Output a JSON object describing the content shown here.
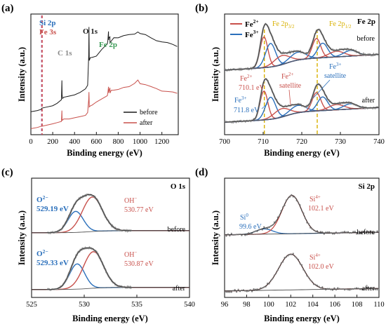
{
  "colors": {
    "black": "#1a1a1a",
    "red": "#c8504b",
    "blue": "#2a6fbb",
    "green": "#3a9a55",
    "gold": "#d8b000",
    "gray": "#8a8a8a",
    "fill_red": "#e8a4a0",
    "fill_blue": "#9cc0e6",
    "purple_dash": "#9a5fb0",
    "red_dash": "#d05050"
  },
  "chart_data": [
    {
      "panel": "(a)",
      "type": "line",
      "xlabel": "Binding energy (eV)",
      "ylabel": "Intensity (a.u.)",
      "xlim": [
        0,
        1350
      ],
      "xticks": [
        0,
        200,
        400,
        600,
        800,
        1000,
        1200
      ],
      "series": [
        {
          "name": "before",
          "color": "black",
          "x": [
            0,
            60,
            95,
            100,
            150,
            200,
            240,
            280,
            284,
            286,
            290,
            300,
            350,
            400,
            450,
            500,
            520,
            530,
            532,
            535,
            545,
            560,
            600,
            650,
            700,
            705,
            711,
            712,
            715,
            724,
            725,
            735,
            760,
            800,
            850,
            900,
            950,
            980,
            1000,
            1050,
            1100,
            1150,
            1200,
            1250,
            1300,
            1340
          ],
          "y": [
            0.19,
            0.2,
            0.21,
            0.22,
            0.23,
            0.24,
            0.26,
            0.29,
            0.45,
            0.33,
            0.3,
            0.31,
            0.32,
            0.33,
            0.35,
            0.38,
            0.41,
            0.66,
            0.9,
            0.62,
            0.64,
            0.64,
            0.66,
            0.7,
            0.75,
            0.78,
            0.86,
            0.78,
            0.8,
            0.82,
            0.76,
            0.78,
            0.8,
            0.81,
            0.82,
            0.83,
            0.84,
            0.86,
            0.83,
            0.82,
            0.81,
            0.78,
            0.76,
            0.77,
            0.75,
            0.73
          ]
        },
        {
          "name": "after",
          "color": "red",
          "x": [
            0,
            60,
            95,
            100,
            150,
            200,
            240,
            280,
            284,
            286,
            290,
            300,
            350,
            400,
            450,
            500,
            520,
            530,
            532,
            535,
            545,
            560,
            600,
            650,
            700,
            705,
            711,
            712,
            715,
            724,
            725,
            735,
            760,
            800,
            850,
            900,
            950,
            980,
            1000,
            1050,
            1100,
            1150,
            1200,
            1250,
            1300,
            1340
          ],
          "y": [
            0.05,
            0.06,
            0.07,
            0.07,
            0.08,
            0.09,
            0.1,
            0.11,
            0.2,
            0.12,
            0.12,
            0.13,
            0.13,
            0.14,
            0.15,
            0.16,
            0.18,
            0.3,
            0.36,
            0.22,
            0.24,
            0.25,
            0.27,
            0.3,
            0.33,
            0.34,
            0.4,
            0.35,
            0.37,
            0.38,
            0.35,
            0.36,
            0.37,
            0.38,
            0.39,
            0.4,
            0.42,
            0.45,
            0.43,
            0.42,
            0.4,
            0.39,
            0.37,
            0.36,
            0.35,
            0.34
          ]
        }
      ],
      "annotations": [
        {
          "text": "Si 2p",
          "color": "blue"
        },
        {
          "text": "Fe 3s",
          "color": "red"
        },
        {
          "text": "C 1s",
          "color": "gray"
        },
        {
          "text": "O 1s",
          "color": "black"
        },
        {
          "text": "Fe 2p",
          "color": "green"
        }
      ],
      "reference_lines_x": [
        99,
        103
      ],
      "legend": {
        "placement": "bottom-right",
        "entries": [
          "before",
          "after"
        ]
      }
    },
    {
      "panel": "(b)",
      "type": "line",
      "title": "Fe 2p",
      "xlabel": "Binding energy (eV)",
      "ylabel": "Intensity (a.u.)",
      "xlim": [
        700,
        740
      ],
      "xticks": [
        700,
        710,
        720,
        730,
        740
      ],
      "reference_lines_x": [
        710.3,
        724.0
      ],
      "legend": {
        "placement": "top-left",
        "entries": [
          "Fe2+",
          "Fe3+"
        ]
      },
      "labels": {
        "fe2p32": "Fe 2p3/2",
        "fe2p12": "Fe 2p1/2",
        "before": "before",
        "after": "after"
      },
      "annotations": [
        "Fe2+ 710.1 eV",
        "Fe3+ 711.8 eV",
        "Fe2+ satellite",
        "Fe3+ satellite"
      ]
    },
    {
      "panel": "(c)",
      "type": "line",
      "title": "O 1s",
      "xlabel": "Binding energy (eV)",
      "ylabel": "Intensity (a.u.)",
      "xlim": [
        525,
        540
      ],
      "xticks": [
        525,
        530,
        535,
        540
      ],
      "components": {
        "before": [
          {
            "name": "O2−",
            "center": 529.19
          },
          {
            "name": "OH−",
            "center": 530.77
          }
        ],
        "after": [
          {
            "name": "O2−",
            "center": 529.33
          },
          {
            "name": "OH−",
            "center": 530.87
          }
        ]
      },
      "labels": {
        "before": "before",
        "after": "after"
      }
    },
    {
      "panel": "(d)",
      "type": "line",
      "title": "Si 2p",
      "xlabel": "Binding energy (eV)",
      "ylabel": "Intensity (a.u.)",
      "xlim": [
        96,
        110
      ],
      "xticks": [
        96,
        98,
        100,
        102,
        104,
        106,
        108,
        110
      ],
      "components": {
        "before": [
          {
            "name": "Si0",
            "center": 99.6
          },
          {
            "name": "Si4+",
            "center": 102.1
          }
        ],
        "after": [
          {
            "name": "Si4+",
            "center": 102.0
          }
        ]
      },
      "labels": {
        "before": "before",
        "after": "after"
      }
    }
  ],
  "text": {
    "pa": "(a)",
    "pb": "(b)",
    "pc": "(c)",
    "pd": "(d)",
    "xlabel": "Binding energy (eV)",
    "ylabel": "Intensity (a.u.)",
    "a": {
      "si2p": "Si 2p",
      "fe3s": "Fe 3s",
      "c1s": "C 1s",
      "o1s": "O 1s",
      "fe2p": "Fe 2p",
      "before": "before",
      "after": "after"
    },
    "b": {
      "title": "Fe 2p",
      "leg_fe2_main": "Fe",
      "leg_fe2_sup": "2+",
      "leg_fe3_main": "Fe",
      "leg_fe3_sup": "3+",
      "p32_main": "Fe 2p",
      "p32_sub": "3/2",
      "p12_main": "Fe 2p",
      "p12_sub": "1/2",
      "before": "before",
      "after": "after",
      "fe2_main": "Fe",
      "fe2_sup": "2+",
      "fe2_ev": "710.1 eV",
      "fe3_main": "Fe",
      "fe3_sup": "3+",
      "fe3_ev": "711.8 eV",
      "fe2sat_main": "Fe",
      "fe2sat_sup": "2+",
      "fe2sat_word": "satellite",
      "fe3sat_main": "Fe",
      "fe3sat_sup": "3+",
      "fe3sat_word": "satellite"
    },
    "c": {
      "title": "O 1s",
      "o2_main": "O",
      "o2_sup": "2−",
      "oh_main": "OH",
      "oh_sup": "−",
      "o2_ev_b": "529.19 eV",
      "oh_ev_b": "530.77 eV",
      "o2_ev_a": "529.33 eV",
      "oh_ev_a": "530.87 eV",
      "before": "before",
      "after": "after"
    },
    "d": {
      "title": "Si 2p",
      "si0_main": "Si",
      "si0_sup": "0",
      "si0_ev": "99.6 eV",
      "si4_main": "Si",
      "si4_sup": "4+",
      "si4_ev_b": "102.1 eV",
      "si4_ev_a": "102.0 eV",
      "before": "before",
      "after": "after"
    }
  }
}
